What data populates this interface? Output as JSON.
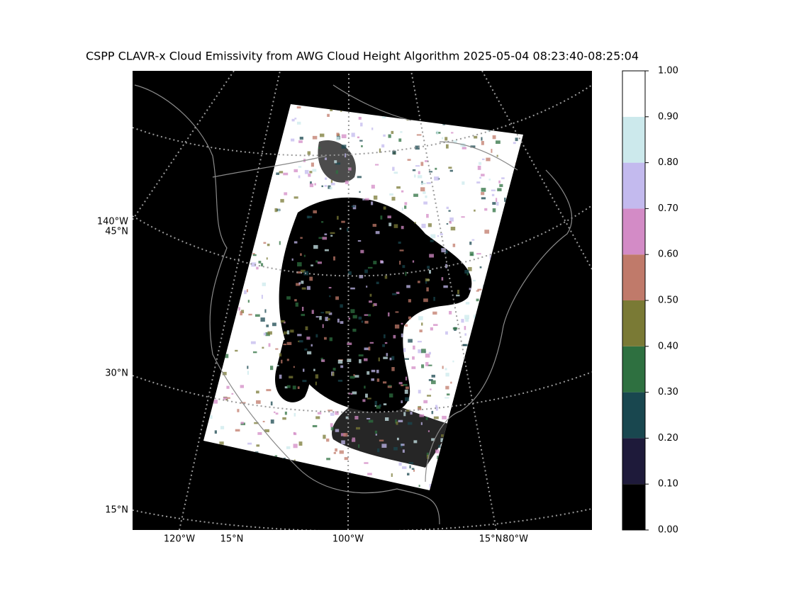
{
  "title": "CSPP CLAVR-x Cloud Emissivity from AWG Cloud Height Algorithm 2025-05-04 08:23:40-08:25:04",
  "map": {
    "left_labels": [
      "140°W",
      "45°N",
      "30°N",
      "15°N"
    ],
    "bottom_labels": [
      "120°W",
      "15°N",
      "100°W",
      "15°N",
      "80°W"
    ]
  },
  "colorbar": {
    "lim": [
      0,
      1
    ],
    "ticks": [
      {
        "value": 0,
        "label": "0.00"
      },
      {
        "value": 0.1,
        "label": "0.10"
      },
      {
        "value": 0.2,
        "label": "0.20"
      },
      {
        "value": 0.3,
        "label": "0.30"
      },
      {
        "value": 0.4,
        "label": "0.40"
      },
      {
        "value": 0.5,
        "label": "0.50"
      },
      {
        "value": 0.6,
        "label": "0.60"
      },
      {
        "value": 0.7,
        "label": "0.70"
      },
      {
        "value": 0.8,
        "label": "0.80"
      },
      {
        "value": 0.9,
        "label": "0.90"
      },
      {
        "value": 1,
        "label": "1.00"
      }
    ],
    "colors": [
      "#000000",
      "#1e1a3a",
      "#19474f",
      "#2e7040",
      "#7a7a35",
      "#c07a6a",
      "#d38bc6",
      "#c3baee",
      "#cce9ec",
      "#ffffff"
    ]
  }
}
